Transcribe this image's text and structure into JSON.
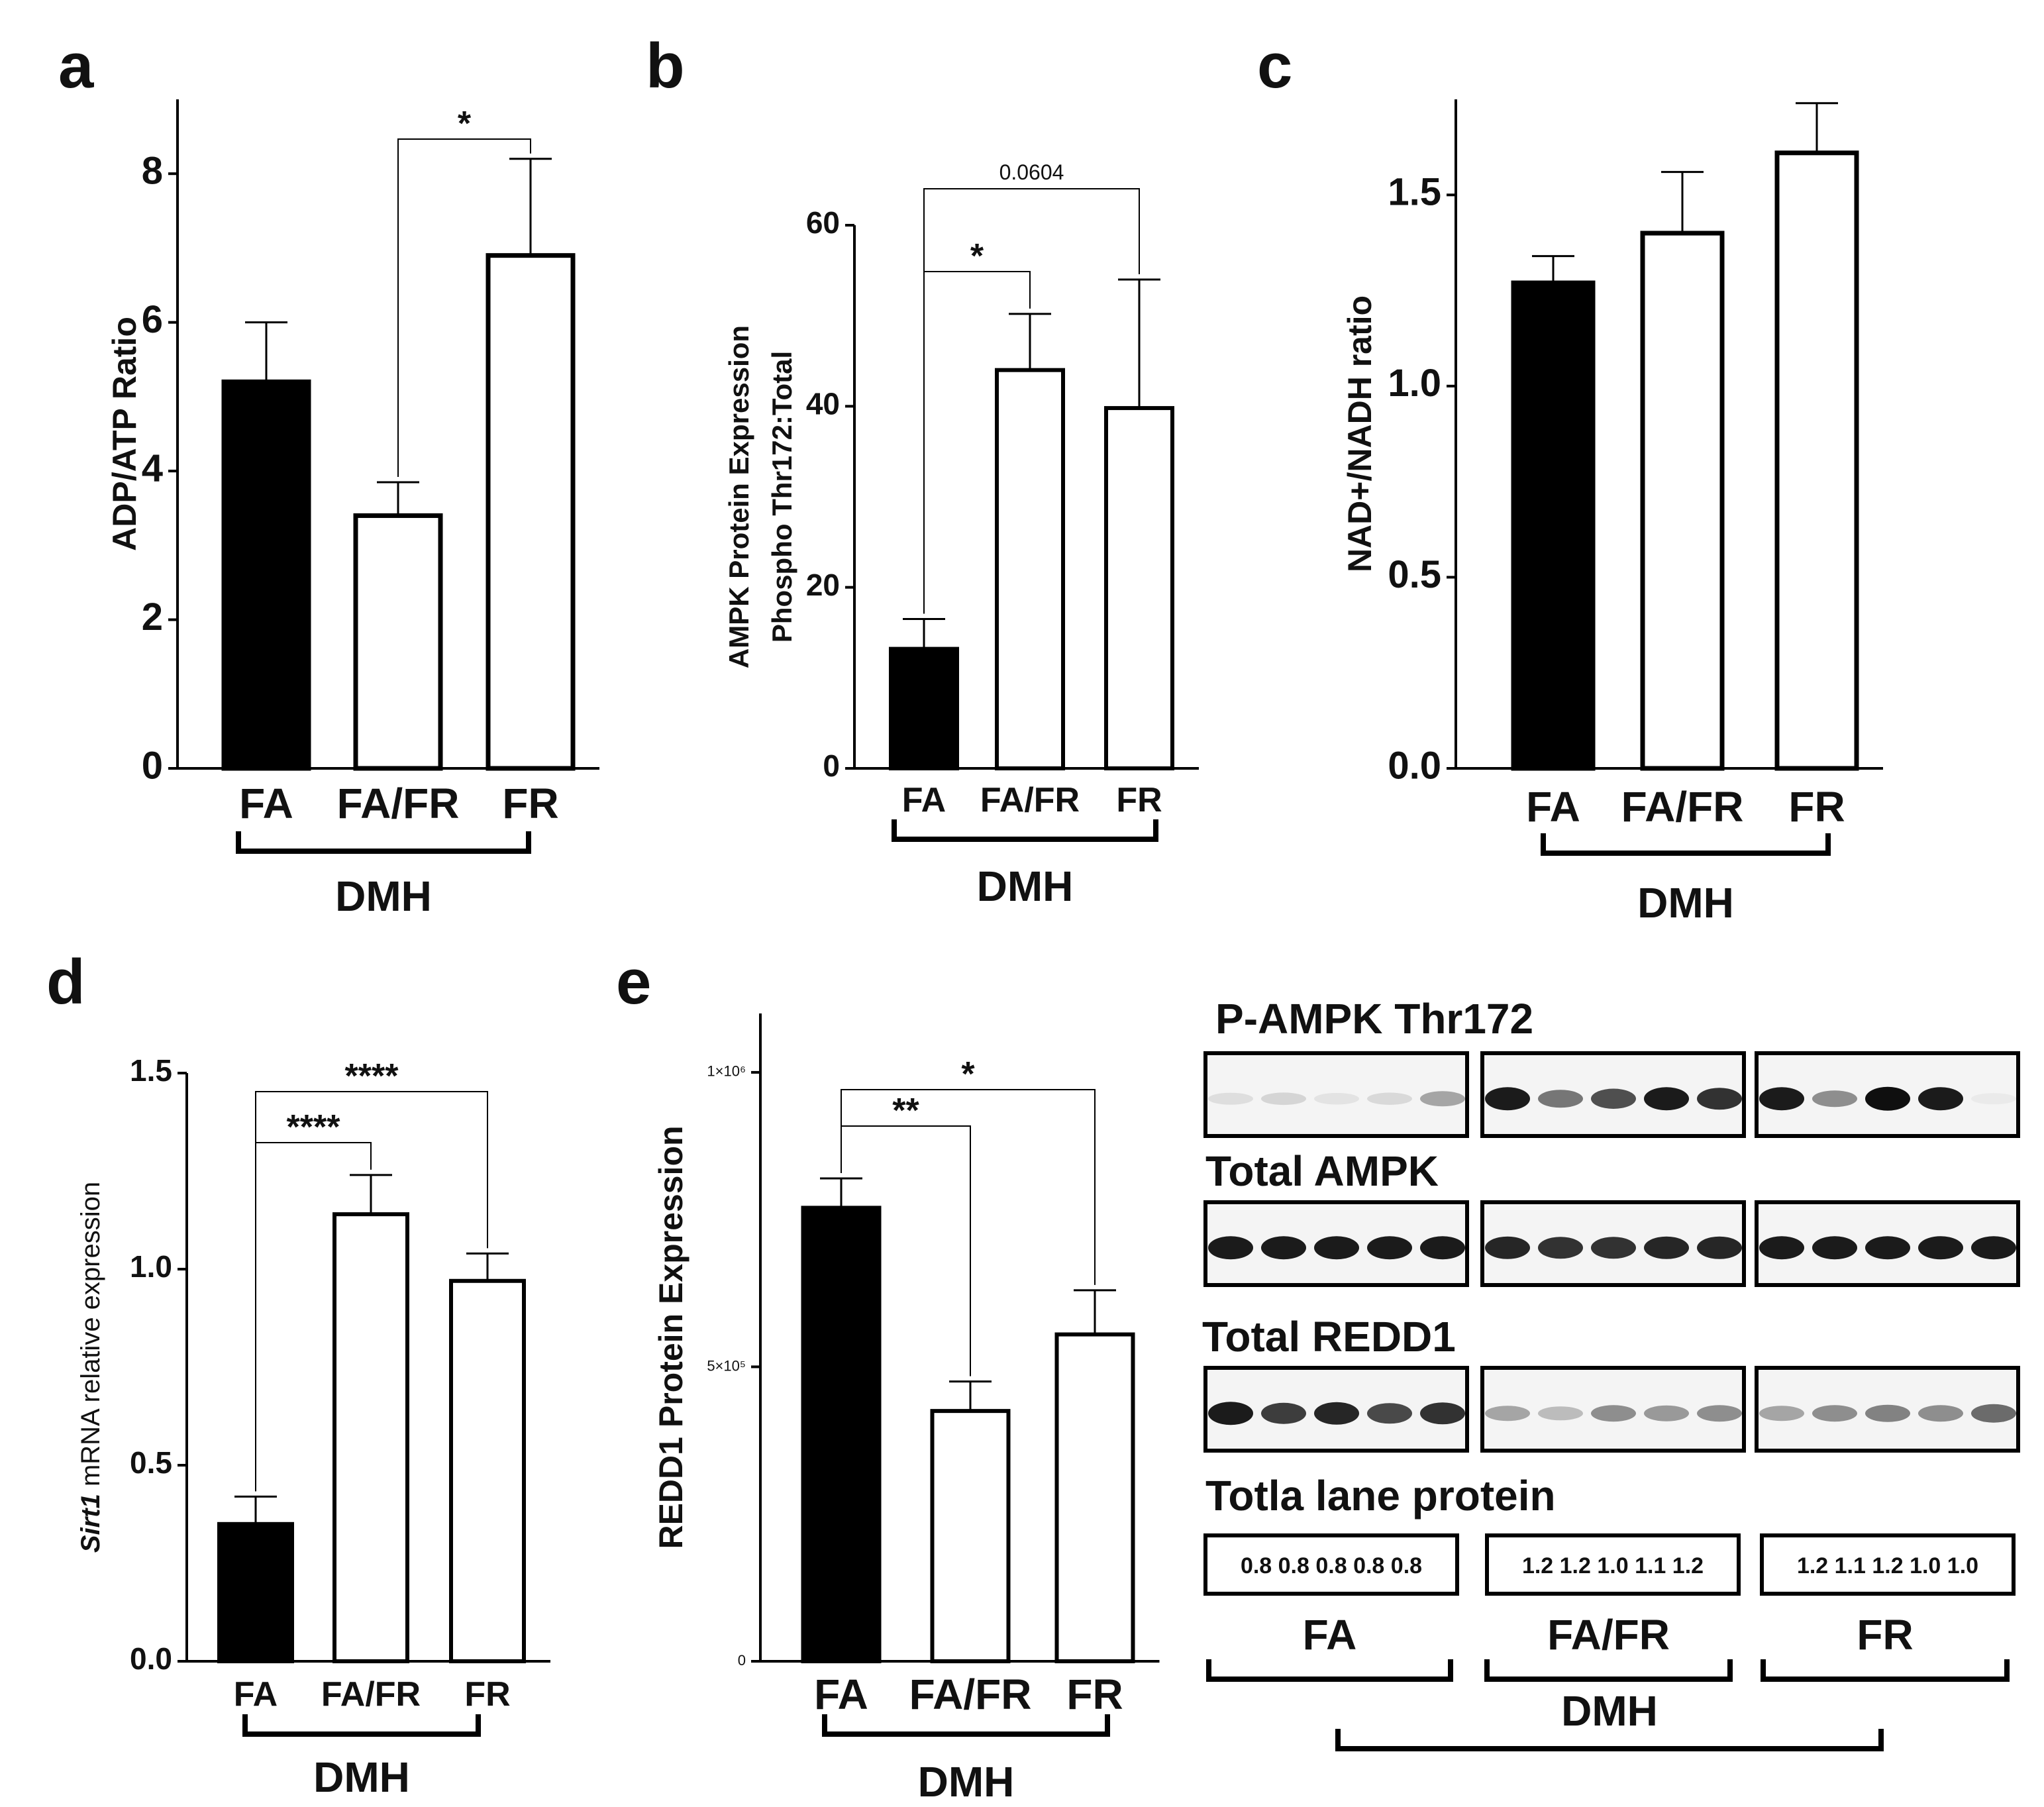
{
  "panels": {
    "a": "a",
    "b": "b",
    "c": "c",
    "d": "d",
    "e": "e"
  },
  "colors": {
    "FA": "#000000",
    "FA/FR": "#ffffff",
    "FR": "#ffffff",
    "stroke": "#000000"
  },
  "chart_data": [
    {
      "id": "a",
      "type": "bar",
      "categories": [
        "FA",
        "FA/FR",
        "FR"
      ],
      "values": [
        5.2,
        3.4,
        6.9
      ],
      "errors": [
        0.8,
        0.45,
        1.3
      ],
      "ylabel": "ADP/ATP Ratio",
      "ylim": [
        0,
        9
      ],
      "yticks": [
        0,
        2,
        4,
        6,
        8
      ],
      "ytick_labels": [
        "0",
        "2",
        "4",
        "6",
        "8"
      ],
      "group_label": "DMH",
      "significance": [
        {
          "from": "FA/FR",
          "to": "FR",
          "label": "*"
        }
      ]
    },
    {
      "id": "b",
      "type": "bar",
      "categories": [
        "FA",
        "FA/FR",
        "FR"
      ],
      "values": [
        13.2,
        44,
        39.8
      ],
      "errors": [
        3.3,
        6.2,
        14.2
      ],
      "ylabel": "AMPK Protein Expression",
      "ylabel2": "Phospho Thr172:Total",
      "ylim": [
        0,
        60
      ],
      "yticks": [
        0,
        20,
        40,
        60
      ],
      "ytick_labels": [
        "0",
        "20",
        "40",
        "60"
      ],
      "group_label": "DMH",
      "significance": [
        {
          "from": "FA",
          "to": "FA/FR",
          "label": "*"
        },
        {
          "from": "FA",
          "to": "FR",
          "label": "0.0604"
        }
      ]
    },
    {
      "id": "c",
      "type": "bar",
      "categories": [
        "FA",
        "FA/FR",
        "FR"
      ],
      "values": [
        1.27,
        1.4,
        1.61
      ],
      "errors": [
        0.07,
        0.16,
        0.13
      ],
      "ylabel": "NAD+/NADH ratio",
      "ylim": [
        0,
        1.75
      ],
      "yticks": [
        0,
        0.5,
        1.0,
        1.5
      ],
      "ytick_labels": [
        "0.0",
        "0.5",
        "1.0",
        "1.5"
      ],
      "group_label": "DMH",
      "significance": []
    },
    {
      "id": "d",
      "type": "bar",
      "categories": [
        "FA",
        "FA/FR",
        "FR"
      ],
      "values": [
        0.35,
        1.14,
        0.97
      ],
      "errors": [
        0.07,
        0.1,
        0.07
      ],
      "ylabel_italic": "Sirt1",
      "ylabel": " mRNA relative expression",
      "ylim": [
        0,
        1.5
      ],
      "yticks": [
        0,
        0.5,
        1.0,
        1.5
      ],
      "ytick_labels": [
        "0.0",
        "0.5",
        "1.0",
        "1.5"
      ],
      "group_label": "DMH",
      "significance": [
        {
          "from": "FA",
          "to": "FA/FR",
          "label": "****"
        },
        {
          "from": "FA",
          "to": "FR",
          "label": "****"
        }
      ]
    },
    {
      "id": "e",
      "type": "bar",
      "categories": [
        "FA",
        "FA/FR",
        "FR"
      ],
      "values": [
        770000,
        425000,
        555000
      ],
      "errors": [
        50000,
        50000,
        75000
      ],
      "ylabel": "REDD1 Protein  Expression",
      "ylim": [
        0,
        1100000
      ],
      "yticks": [
        0,
        500000,
        1000000
      ],
      "ytick_labels": [
        "0",
        "5×10⁵",
        "1×10⁶"
      ],
      "group_label": "DMH",
      "significance": [
        {
          "from": "FA",
          "to": "FA/FR",
          "label": "**"
        },
        {
          "from": "FA",
          "to": "FR",
          "label": "*"
        }
      ]
    }
  ],
  "blots": {
    "titles": [
      "P-AMPK Thr172",
      "Total AMPK",
      "Total REDD1",
      "Totla lane protein"
    ],
    "lane_protein": [
      "0.8 0.8 0.8 0.8 0.8",
      "1.2 1.2 1.0 1.1 1.2",
      "1.2 1.1 1.2 1.0 1.0"
    ],
    "groups": [
      "FA",
      "FA/FR",
      "FR"
    ],
    "group_label": "DMH",
    "band_intensity": {
      "p_ampk": [
        [
          0.1,
          0.14,
          0.08,
          0.12,
          0.35
        ],
        [
          0.95,
          0.55,
          0.72,
          0.95,
          0.85
        ],
        [
          0.95,
          0.45,
          1.0,
          0.95,
          0.05
        ]
      ],
      "total_ampk": [
        [
          0.95,
          0.95,
          0.95,
          0.95,
          0.95
        ],
        [
          0.9,
          0.85,
          0.85,
          0.9,
          0.9
        ],
        [
          0.95,
          0.95,
          0.95,
          0.95,
          0.95
        ]
      ],
      "total_redd1": [
        [
          0.95,
          0.8,
          0.9,
          0.75,
          0.85
        ],
        [
          0.35,
          0.25,
          0.45,
          0.4,
          0.45
        ],
        [
          0.35,
          0.45,
          0.5,
          0.45,
          0.6
        ]
      ]
    }
  }
}
